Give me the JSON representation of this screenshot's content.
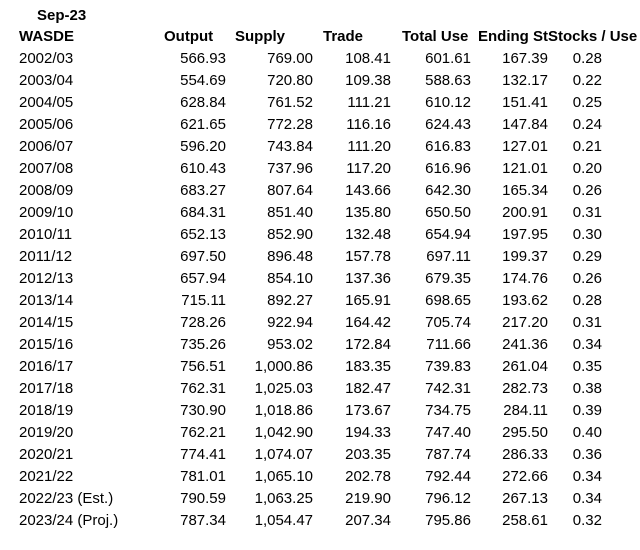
{
  "sheet": {
    "date_label": "Sep-23",
    "headers": [
      "WASDE",
      "Output",
      "Supply",
      "Trade",
      "Total Use",
      "Ending Sto",
      "Stocks / Use"
    ],
    "rows": [
      [
        "2002/03",
        "566.93",
        "769.00",
        "108.41",
        "601.61",
        "167.39",
        "0.28"
      ],
      [
        "2003/04",
        "554.69",
        "720.80",
        "109.38",
        "588.63",
        "132.17",
        "0.22"
      ],
      [
        "2004/05",
        "628.84",
        "761.52",
        "111.21",
        "610.12",
        "151.41",
        "0.25"
      ],
      [
        "2005/06",
        "621.65",
        "772.28",
        "116.16",
        "624.43",
        "147.84",
        "0.24"
      ],
      [
        "2006/07",
        "596.20",
        "743.84",
        "111.20",
        "616.83",
        "127.01",
        "0.21"
      ],
      [
        "2007/08",
        "610.43",
        "737.96",
        "117.20",
        "616.96",
        "121.01",
        "0.20"
      ],
      [
        "2008/09",
        "683.27",
        "807.64",
        "143.66",
        "642.30",
        "165.34",
        "0.26"
      ],
      [
        "2009/10",
        "684.31",
        "851.40",
        "135.80",
        "650.50",
        "200.91",
        "0.31"
      ],
      [
        "2010/11",
        "652.13",
        "852.90",
        "132.48",
        "654.94",
        "197.95",
        "0.30"
      ],
      [
        "2011/12",
        "697.50",
        "896.48",
        "157.78",
        "697.11",
        "199.37",
        "0.29"
      ],
      [
        "2012/13",
        "657.94",
        "854.10",
        "137.36",
        "679.35",
        "174.76",
        "0.26"
      ],
      [
        "2013/14",
        "715.11",
        "892.27",
        "165.91",
        "698.65",
        "193.62",
        "0.28"
      ],
      [
        "2014/15",
        "728.26",
        "922.94",
        "164.42",
        "705.74",
        "217.20",
        "0.31"
      ],
      [
        "2015/16",
        "735.26",
        "953.02",
        "172.84",
        "711.66",
        "241.36",
        "0.34"
      ],
      [
        "2016/17",
        "756.51",
        "1,000.86",
        "183.35",
        "739.83",
        "261.04",
        "0.35"
      ],
      [
        "2017/18",
        "762.31",
        "1,025.03",
        "182.47",
        "742.31",
        "282.73",
        "0.38"
      ],
      [
        "2018/19",
        "730.90",
        "1,018.86",
        "173.67",
        "734.75",
        "284.11",
        "0.39"
      ],
      [
        "2019/20",
        "762.21",
        "1,042.90",
        "194.33",
        "747.40",
        "295.50",
        "0.40"
      ],
      [
        "2020/21",
        "774.41",
        "1,074.07",
        "203.35",
        "787.74",
        "286.33",
        "0.36"
      ],
      [
        "2021/22",
        "781.01",
        "1,065.10",
        "202.78",
        "792.44",
        "272.66",
        "0.34"
      ],
      [
        "2022/23 (Est.)",
        "790.59",
        "1,063.25",
        "219.90",
        "796.12",
        "267.13",
        "0.34"
      ],
      [
        "2023/24 (Proj.)",
        "787.34",
        "1,054.47",
        "207.34",
        "795.86",
        "258.61",
        "0.32"
      ]
    ]
  }
}
